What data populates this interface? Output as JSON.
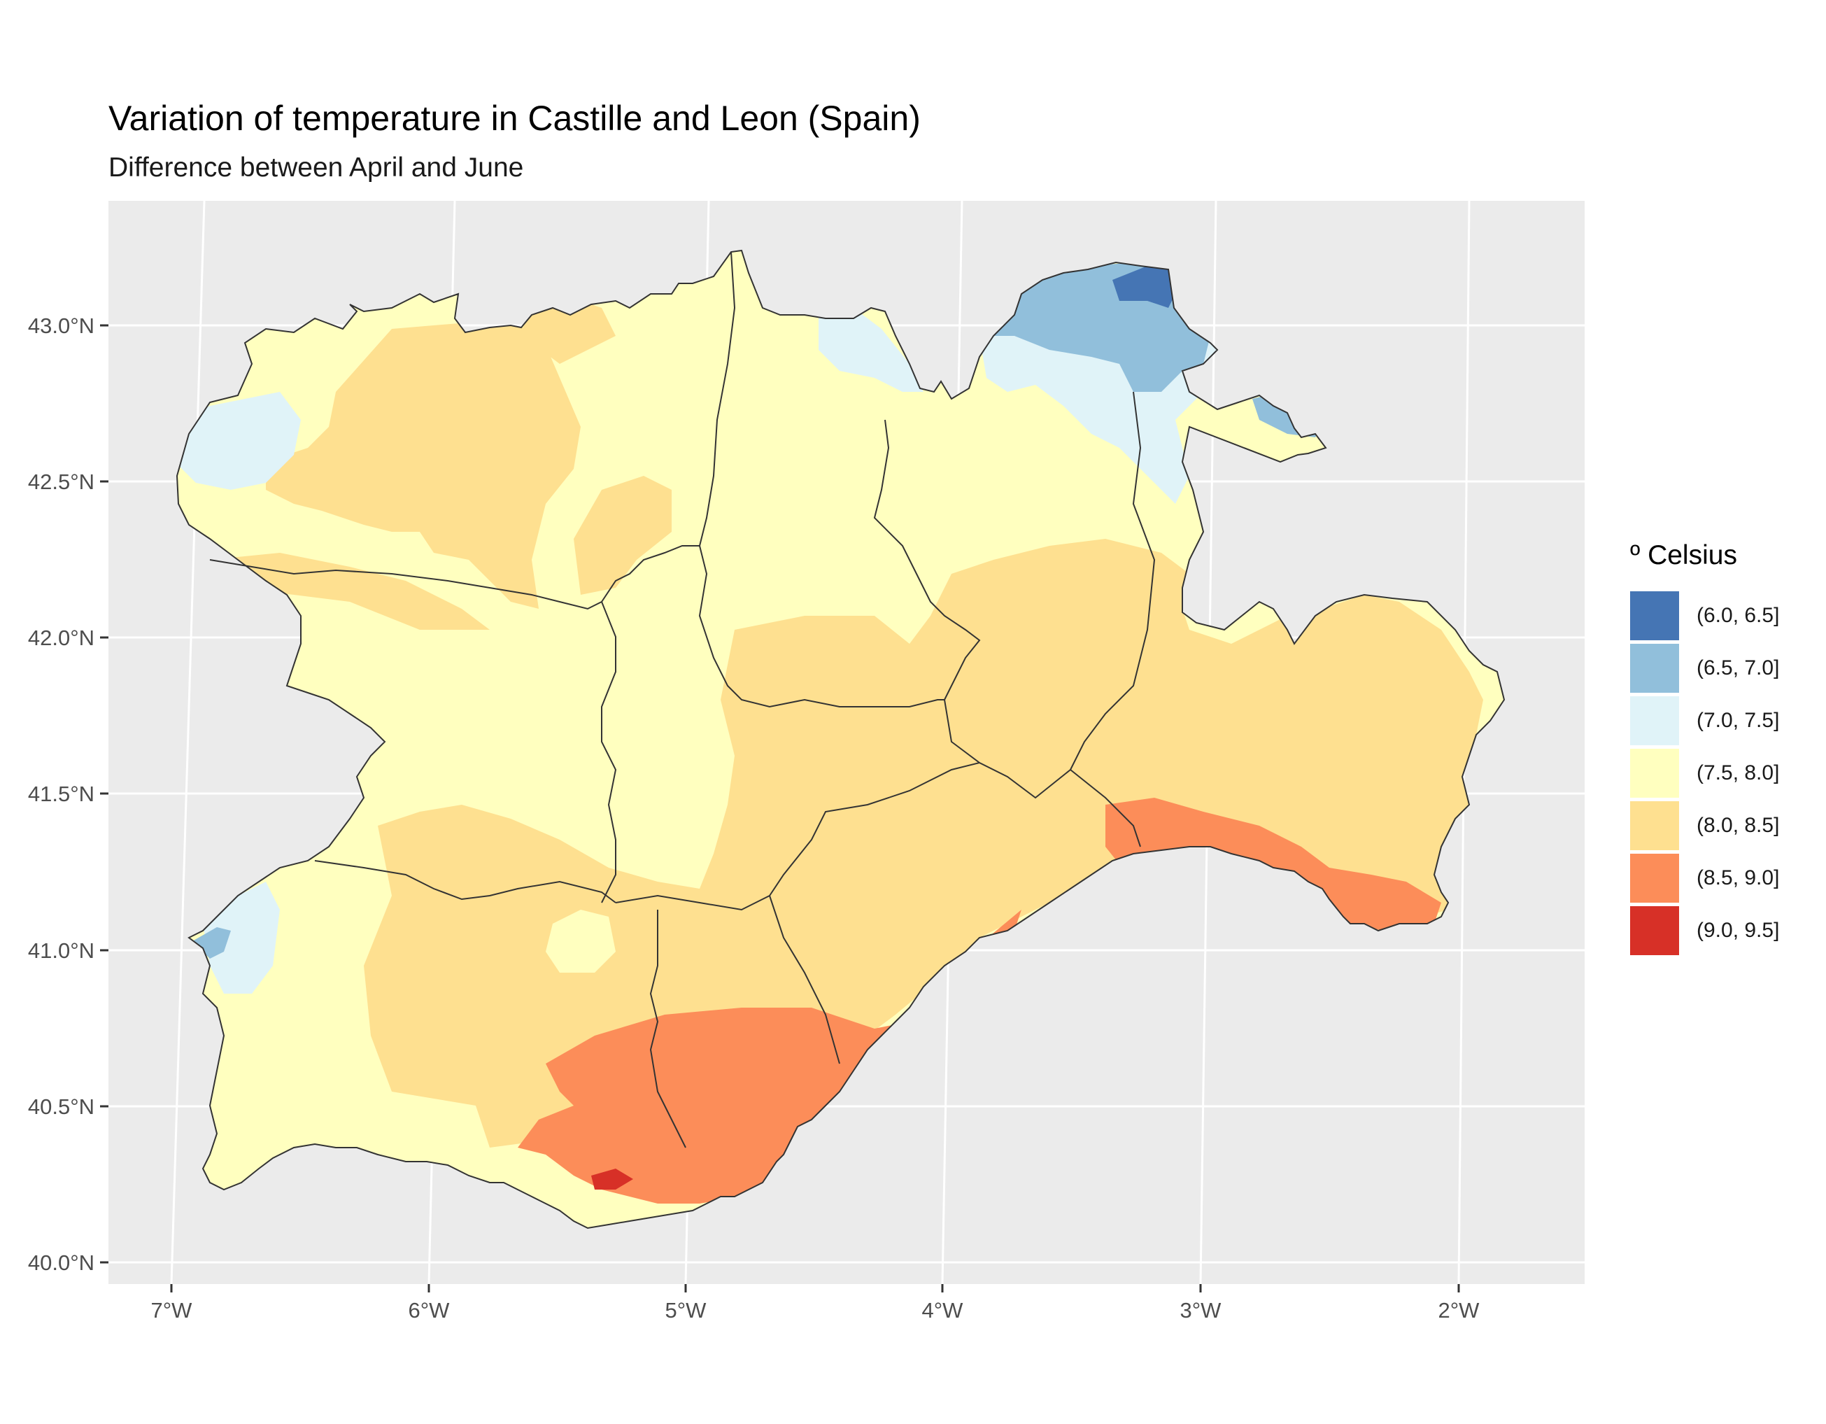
{
  "title": "Variation of temperature in Castille and Leon (Spain)",
  "subtitle": "Difference between April and June",
  "axes": {
    "x_ticks": [
      "7°W",
      "6°W",
      "5°W",
      "4°W",
      "3°W",
      "2°W"
    ],
    "y_ticks": [
      "43.0°N",
      "42.5°N",
      "42.0°N",
      "41.5°N",
      "41.0°N",
      "40.5°N",
      "40.0°N"
    ]
  },
  "legend": {
    "title": "º Celsius",
    "items": [
      {
        "label": "(6.0, 6.5]",
        "color": "#4575b4"
      },
      {
        "label": "(6.5, 7.0]",
        "color": "#91bfdb"
      },
      {
        "label": "(7.0, 7.5]",
        "color": "#e0f3f8"
      },
      {
        "label": "(7.5, 8.0]",
        "color": "#ffffbf"
      },
      {
        "label": "(8.0, 8.5]",
        "color": "#fee090"
      },
      {
        "label": "(8.5, 9.0]",
        "color": "#fc8d59"
      },
      {
        "label": "(9.0, 9.5]",
        "color": "#d73027"
      }
    ]
  },
  "colors": {
    "panel_background": "#ebebeb",
    "grid": "#ffffff",
    "border": "#333333"
  }
}
